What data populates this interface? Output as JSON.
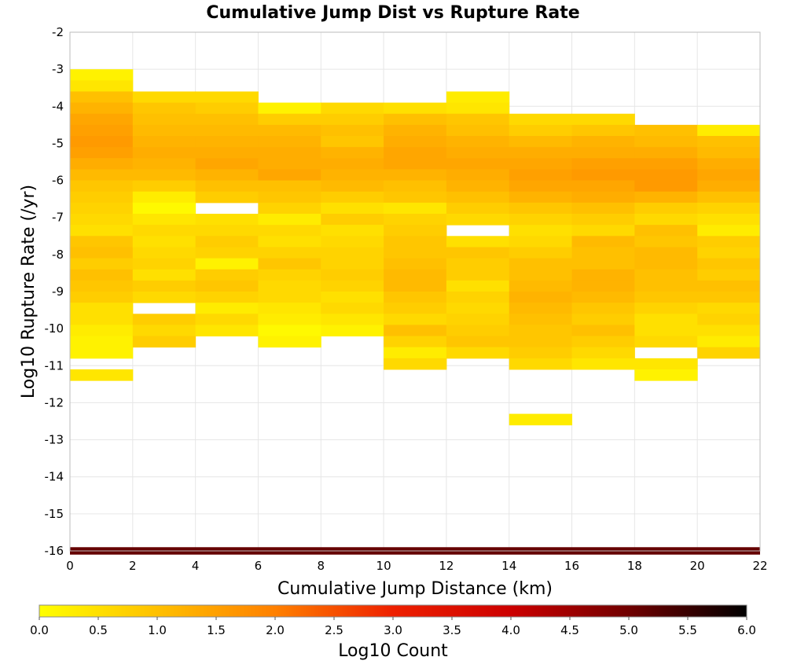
{
  "chart_data": {
    "type": "heatmap",
    "title": "Cumulative Jump Dist vs Rupture Rate",
    "xlabel": "Cumulative Jump Distance (km)",
    "ylabel": "Log10 Rupture Rate (/yr)",
    "xlim": [
      0,
      22
    ],
    "ylim": [
      -16,
      -2
    ],
    "x_ticks": [
      "0",
      "2",
      "4",
      "6",
      "8",
      "10",
      "12",
      "14",
      "16",
      "18",
      "20",
      "22"
    ],
    "y_ticks": [
      "-2",
      "-3",
      "-4",
      "-5",
      "-6",
      "-7",
      "-8",
      "-9",
      "-10",
      "-11",
      "-12",
      "-13",
      "-14",
      "-15",
      "-16"
    ],
    "x_bin_width": 2,
    "y_bin_height": 0.3,
    "grid": true,
    "colorbar": {
      "label": "Log10 Count",
      "range": [
        0,
        6
      ],
      "ticks": [
        "0.0",
        "0.5",
        "1.0",
        "1.5",
        "2.0",
        "2.5",
        "3.0",
        "3.5",
        "4.0",
        "4.5",
        "5.0",
        "5.5",
        "6.0"
      ],
      "colors": [
        "#FFFF00",
        "#FFC000",
        "#FF8000",
        "#EE2000",
        "#CC0000",
        "#700000",
        "#000000"
      ]
    },
    "columns": [
      {
        "x_start": 0,
        "y_top": -3.0,
        "values": [
          0.2,
          0.4,
          1.0,
          1.2,
          1.4,
          1.5,
          1.6,
          1.5,
          1.3,
          1.1,
          0.9,
          0.8,
          0.7,
          0.6,
          0.5,
          0.9,
          1.0,
          0.8,
          1.0,
          0.9,
          0.8,
          0.5,
          0.5,
          0.3,
          0.2,
          0.2,
          null,
          0.4
        ]
      },
      {
        "x_start": 2,
        "y_top": -3.6,
        "values": [
          0.6,
          0.9,
          1.0,
          1.1,
          1.2,
          1.3,
          1.2,
          1.1,
          0.8,
          0.3,
          0.1,
          0.4,
          0.6,
          0.5,
          0.6,
          0.7,
          0.5,
          0.8,
          0.6,
          null,
          0.8,
          0.6,
          0.8
        ]
      },
      {
        "x_start": 4,
        "y_top": -3.6,
        "values": [
          0.6,
          0.8,
          1.0,
          1.1,
          1.2,
          1.3,
          1.4,
          1.2,
          1.0,
          0.8,
          null,
          0.5,
          0.6,
          0.8,
          0.7,
          0.2,
          0.8,
          0.9,
          0.7,
          0.3,
          0.6,
          0.4
        ]
      },
      {
        "x_start": 6,
        "y_top": -3.9,
        "values": [
          0.2,
          0.8,
          1.1,
          1.2,
          1.3,
          1.3,
          1.4,
          1.0,
          0.9,
          0.7,
          0.3,
          0.6,
          0.5,
          0.7,
          0.9,
          0.7,
          0.6,
          0.6,
          0.4,
          0.3,
          0.1,
          0.2
        ]
      },
      {
        "x_start": 8,
        "y_top": -3.9,
        "values": [
          0.6,
          0.8,
          1.0,
          0.9,
          1.2,
          1.3,
          1.2,
          1.1,
          0.8,
          0.5,
          0.8,
          0.5,
          0.6,
          0.7,
          0.7,
          0.8,
          0.7,
          0.5,
          0.6,
          0.4,
          0.2
        ]
      },
      {
        "x_start": 10,
        "y_top": -3.9,
        "values": [
          0.5,
          1.0,
          1.2,
          1.3,
          1.4,
          1.4,
          1.2,
          1.0,
          0.9,
          0.4,
          0.7,
          0.8,
          0.9,
          0.9,
          1.0,
          1.1,
          1.1,
          0.9,
          0.8,
          0.6,
          1.0,
          0.7,
          0.3,
          0.6
        ]
      },
      {
        "x_start": 12,
        "y_top": -3.6,
        "values": [
          0.3,
          0.4,
          0.9,
          1.0,
          1.2,
          1.3,
          1.4,
          1.3,
          1.2,
          1.0,
          0.8,
          0.6,
          null,
          0.5,
          0.9,
          0.8,
          0.8,
          0.5,
          0.7,
          0.6,
          0.7,
          0.8,
          0.9,
          0.6
        ]
      },
      {
        "x_start": 14,
        "y_top": -4.2,
        "values": [
          0.6,
          0.8,
          1.1,
          1.3,
          1.4,
          1.5,
          1.4,
          1.2,
          0.9,
          0.7,
          0.5,
          0.6,
          0.8,
          1.0,
          1.0,
          1.1,
          1.2,
          1.1,
          1.0,
          0.9,
          0.9,
          0.8,
          0.6,
          null,
          null,
          null,
          null,
          0.3
        ]
      },
      {
        "x_start": 16,
        "y_top": -4.2,
        "values": [
          0.6,
          0.9,
          1.2,
          1.3,
          1.5,
          1.6,
          1.4,
          1.3,
          1.0,
          0.8,
          0.6,
          1.1,
          1.0,
          1.0,
          1.2,
          1.2,
          1.1,
          0.9,
          0.8,
          1.0,
          0.8,
          0.6,
          0.4
        ]
      },
      {
        "x_start": 18,
        "y_top": -4.5,
        "values": [
          1.0,
          1.1,
          1.3,
          1.5,
          1.6,
          1.6,
          1.2,
          0.8,
          0.6,
          1.0,
          0.9,
          1.1,
          1.1,
          1.0,
          1.0,
          0.9,
          0.7,
          0.5,
          0.5,
          0.6,
          null,
          0.4,
          0.2
        ]
      },
      {
        "x_start": 20,
        "y_top": -4.5,
        "values": [
          0.3,
          1.0,
          1.1,
          1.3,
          1.4,
          1.3,
          1.0,
          0.7,
          0.5,
          0.3,
          0.8,
          0.7,
          0.9,
          0.8,
          1.0,
          0.9,
          0.6,
          0.7,
          0.5,
          0.3,
          0.7
        ]
      }
    ],
    "bottom_band": {
      "y": -16,
      "value": 5.1
    }
  }
}
